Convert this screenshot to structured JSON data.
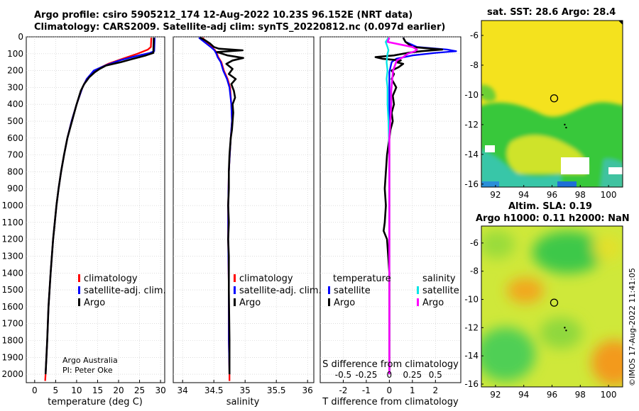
{
  "header": {
    "title_line1": "Argo profile: csiro 5905212_174 12-Aug-2022 10.23S 96.152E (NRT data)",
    "title_line2": "Climatology: CARS2009. Satellite-adj clim: synTS_20220812.nc (0.097d earlier)"
  },
  "maps": {
    "sst_title": "sat. SST: 28.6 Argo: 28.4",
    "sla_title_line1": "Altim. SLA: 0.19",
    "sla_title_line2": "Argo h1000: 0.11 h2000: NaN"
  },
  "stamp": "©IMOS 17-Aug-2022 11:41:05",
  "credits": {
    "line1": "Argo Australia",
    "line2": "PI: Peter Oke"
  },
  "colors": {
    "climatology": "#ff0000",
    "satellite_adj": "#0000ff",
    "argo": "#000000",
    "diff_satellite": "#00e5e5",
    "diff_argo": "#ff00ff"
  },
  "chart_data": [
    {
      "type": "line",
      "id": "temperature",
      "xlabel": "temperature (deg C)",
      "ylabel": "",
      "xlim": [
        -2,
        31
      ],
      "ylim": [
        2050,
        0
      ],
      "xticks": [
        0,
        5,
        10,
        15,
        20,
        25,
        30
      ],
      "yticks": [
        0,
        100,
        200,
        300,
        400,
        500,
        600,
        700,
        800,
        900,
        1000,
        1100,
        1200,
        1300,
        1400,
        1500,
        1600,
        1700,
        1800,
        1900,
        2000
      ],
      "legend": {
        "placement": "lower-middle",
        "entries": [
          "climatology",
          "satellite-adj. clim.",
          "Argo"
        ]
      },
      "series": [
        {
          "name": "climatology",
          "color": "#ff0000",
          "depth": [
            5,
            60,
            75,
            100,
            130,
            160,
            200,
            250,
            300,
            400,
            500,
            600,
            700,
            800,
            900,
            1000,
            1200,
            1400,
            1600,
            1800,
            2000,
            2040
          ],
          "values": [
            27.8,
            27.7,
            27.0,
            24.5,
            21.0,
            17.5,
            14.2,
            12.4,
            11.4,
            10.0,
            8.8,
            7.8,
            7.0,
            6.3,
            5.7,
            5.2,
            4.4,
            3.8,
            3.3,
            3.0,
            2.6,
            2.5
          ]
        },
        {
          "name": "satellite-adj. clim.",
          "color": "#0000ff",
          "depth": [
            5,
            85,
            95,
            115,
            140,
            170,
            200,
            250,
            300,
            400,
            500,
            600,
            700,
            800,
            900,
            1000,
            1200,
            1400,
            1600,
            1800,
            2000
          ],
          "values": [
            28.6,
            28.5,
            27.5,
            24.0,
            20.2,
            16.8,
            14.1,
            12.4,
            11.4,
            10.0,
            8.8,
            7.8,
            7.0,
            6.3,
            5.7,
            5.2,
            4.4,
            3.8,
            3.3,
            3.0,
            2.6
          ]
        },
        {
          "name": "Argo",
          "color": "#000000",
          "depth": [
            5,
            95,
            110,
            130,
            150,
            170,
            190,
            210,
            240,
            280,
            320,
            400,
            500,
            600,
            700,
            800,
            900,
            1000,
            1200,
            1400,
            1600,
            1800,
            2000
          ],
          "values": [
            28.4,
            28.3,
            26.5,
            23.5,
            20.5,
            17.0,
            15.5,
            14.3,
            13.0,
            11.8,
            11.0,
            10.0,
            8.9,
            7.8,
            7.0,
            6.3,
            5.7,
            5.2,
            4.4,
            3.8,
            3.3,
            3.0,
            2.6
          ]
        }
      ]
    },
    {
      "type": "line",
      "id": "salinity",
      "xlabel": "salinity",
      "ylabel": "",
      "xlim": [
        33.85,
        36.1
      ],
      "ylim": [
        2050,
        0
      ],
      "xticks": [
        34,
        34.5,
        35,
        35.5,
        36
      ],
      "legend": {
        "placement": "lower-middle",
        "entries": [
          "climatology",
          "satellite-adj. clim.",
          "Argo"
        ]
      },
      "series": [
        {
          "name": "climatology",
          "color": "#ff0000",
          "depth": [
            5,
            40,
            60,
            80,
            100,
            120,
            150,
            200,
            250,
            300,
            400,
            500,
            600,
            800,
            1000,
            1200,
            1500,
            1800,
            2000,
            2040
          ],
          "values": [
            34.32,
            34.4,
            34.46,
            34.52,
            34.55,
            34.57,
            34.62,
            34.66,
            34.72,
            34.76,
            34.78,
            34.79,
            34.77,
            34.74,
            34.73,
            34.73,
            34.74,
            34.74,
            34.75,
            34.75
          ]
        },
        {
          "name": "satellite-adj. clim.",
          "color": "#0000ff",
          "depth": [
            5,
            40,
            60,
            80,
            100,
            120,
            150,
            200,
            250,
            300,
            400,
            500,
            600,
            800,
            1000,
            1200,
            1500,
            1800,
            2000
          ],
          "values": [
            34.26,
            34.38,
            34.45,
            34.51,
            34.54,
            34.56,
            34.61,
            34.65,
            34.71,
            34.75,
            34.78,
            34.79,
            34.77,
            34.74,
            34.73,
            34.73,
            34.74,
            34.74,
            34.75
          ]
        },
        {
          "name": "Argo",
          "color": "#000000",
          "depth": [
            5,
            20,
            40,
            60,
            70,
            80,
            90,
            110,
            125,
            140,
            160,
            190,
            220,
            250,
            280,
            320,
            360,
            400,
            450,
            500,
            550,
            600,
            700,
            800,
            900,
            1000,
            1100,
            1200,
            1300,
            1500,
            1800,
            2000
          ],
          "values": [
            34.28,
            34.36,
            34.44,
            34.5,
            34.58,
            34.96,
            34.55,
            34.72,
            34.97,
            34.8,
            34.7,
            34.8,
            34.74,
            34.85,
            34.78,
            34.82,
            34.84,
            34.8,
            34.81,
            34.8,
            34.79,
            34.77,
            34.75,
            34.74,
            34.74,
            34.73,
            34.74,
            34.73,
            34.74,
            34.74,
            34.75,
            34.75
          ]
        }
      ]
    },
    {
      "type": "line",
      "id": "difference",
      "xlabel": "T difference from climatology",
      "xlabel_top": "S difference from climatology",
      "ylabel": "",
      "xlim": [
        -3.0,
        3.1
      ],
      "ylim": [
        2050,
        0
      ],
      "xticks": [
        -2,
        -1,
        0,
        1,
        2
      ],
      "xticks_salinity": [
        -0.5,
        -0.25,
        0,
        0.25,
        0.5
      ],
      "legend_temperature": {
        "placement": "lower-left",
        "title": "temperature",
        "entries": [
          "satellite",
          "Argo"
        ]
      },
      "legend_salinity": {
        "placement": "lower-right",
        "title": "salinity",
        "entries": [
          "satellite",
          "Argo"
        ]
      },
      "series": [
        {
          "name": "temperature satellite",
          "color": "#0000ff",
          "depth": [
            5,
            30,
            60,
            75,
            85,
            95,
            110,
            130,
            150,
            180,
            210,
            250,
            300,
            400,
            500,
            700,
            1000,
            1500,
            2000
          ],
          "values": [
            0.6,
            0.7,
            1.2,
            2.5,
            2.9,
            2.0,
            1.0,
            0.3,
            0.1,
            0.05,
            0.0,
            0.0,
            0.0,
            0.0,
            0.0,
            0.0,
            0.0,
            0.0,
            0.0
          ]
        },
        {
          "name": "temperature Argo",
          "color": "#000000",
          "depth": [
            5,
            30,
            60,
            75,
            85,
            95,
            110,
            120,
            130,
            140,
            150,
            160,
            180,
            200,
            220,
            250,
            300,
            350,
            400,
            450,
            500,
            550,
            600,
            700,
            800,
            900,
            1000,
            1100,
            1150,
            1200,
            1300,
            1400,
            1500,
            1700,
            2000
          ],
          "values": [
            0.6,
            0.7,
            1.0,
            2.3,
            1.4,
            0.8,
            0.2,
            -0.6,
            -0.3,
            0.5,
            0.3,
            0.6,
            0.4,
            0.1,
            0.2,
            0.1,
            0.3,
            0.15,
            0.2,
            0.1,
            0.15,
            0.05,
            0.0,
            -0.1,
            -0.15,
            -0.2,
            -0.15,
            -0.2,
            -0.25,
            -0.1,
            -0.05,
            0.0,
            0.0,
            0.0,
            0.0
          ]
        },
        {
          "name": "salinity satellite",
          "color": "#00e5e5",
          "depth": [
            5,
            30,
            60,
            80,
            100,
            150,
            200,
            250,
            300,
            400,
            500,
            700,
            1000,
            1500,
            2000
          ],
          "values": [
            -0.01,
            -0.04,
            -0.02,
            -0.01,
            -0.02,
            -0.03,
            -0.02,
            -0.03,
            -0.02,
            -0.02,
            -0.01,
            0.0,
            0.0,
            0.0,
            0.0
          ]
        },
        {
          "name": "salinity Argo",
          "color": "#ff00ff",
          "depth": [
            5,
            30,
            60,
            75,
            85,
            100,
            120,
            140,
            170,
            200,
            260,
            320,
            400,
            500,
            600,
            700,
            800,
            900,
            1000,
            1200,
            1400,
            1600,
            1800,
            2000
          ],
          "values": [
            0.0,
            -0.02,
            0.25,
            0.3,
            0.28,
            0.2,
            0.15,
            0.08,
            0.06,
            0.04,
            0.03,
            0.02,
            0.02,
            0.01,
            0.0,
            0.0,
            0.0,
            0.0,
            0.0,
            0.0,
            0.0,
            0.0,
            0.0,
            0.0
          ]
        }
      ]
    },
    {
      "type": "heatmap",
      "id": "sst_map",
      "title": "sat. SST: 28.6 Argo: 28.4",
      "xlim": [
        91.0,
        101.0
      ],
      "ylim": [
        -16.2,
        -5.0
      ],
      "xticks": [
        92,
        94,
        96,
        98,
        100
      ],
      "yticks": [
        -6,
        -8,
        -10,
        -12,
        -14,
        -16
      ],
      "float_position": [
        96.15,
        -10.23
      ],
      "track": [
        [
          96.9,
          -12.0
        ],
        [
          97.0,
          -12.2
        ]
      ],
      "color_regions": [
        {
          "label": "warm north",
          "lat_range": [
            -5.0,
            -10.5
          ],
          "color": "#f6e01c"
        },
        {
          "label": "cooler south",
          "lat_range": [
            -10.5,
            -15.0
          ],
          "color": "#2fcc38"
        },
        {
          "label": "coolest south-west",
          "lat_range": [
            -13.5,
            -16.2
          ],
          "color": "#36c6b0"
        }
      ]
    },
    {
      "type": "heatmap",
      "id": "sla_map",
      "title": "Altim. SLA: 0.19",
      "xlim": [
        91.0,
        101.0
      ],
      "ylim": [
        -16.2,
        -4.8
      ],
      "xticks": [
        92,
        94,
        96,
        98,
        100
      ],
      "yticks": [
        -6,
        -8,
        -10,
        -12,
        -14,
        -16
      ],
      "float_position": [
        96.15,
        -10.23
      ],
      "track": [
        [
          96.9,
          -12.0
        ],
        [
          97.0,
          -12.2
        ]
      ],
      "color_regions": [
        {
          "label": "background",
          "color": "#cfe83a"
        },
        {
          "label": "low north-central",
          "center": [
            97.5,
            -6.8
          ],
          "color": "#3ec84a"
        },
        {
          "label": "low south-west",
          "center": [
            93.0,
            -13.8
          ],
          "color": "#4fcf55"
        },
        {
          "label": "high",
          "center": [
            94.2,
            -9.2
          ],
          "color": "#f2a71e"
        },
        {
          "label": "high south-east",
          "center": [
            100.0,
            -14.2
          ],
          "color": "#f39a1c"
        }
      ]
    }
  ]
}
